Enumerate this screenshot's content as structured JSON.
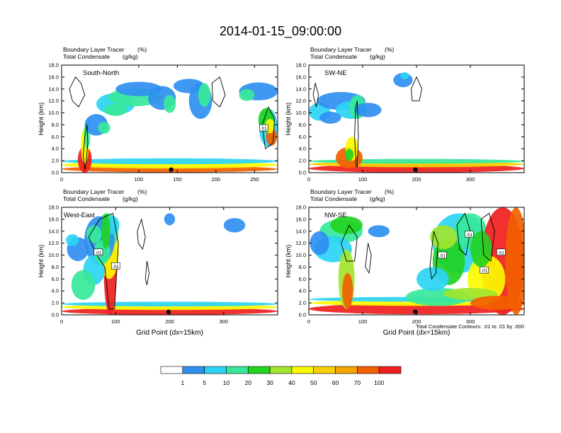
{
  "title": "2014-01-15_09:00:00",
  "colors": {
    "scale": [
      "#ffffff",
      "#2f8ff0",
      "#2bd4f4",
      "#37e89a",
      "#22d322",
      "#a2e52f",
      "#fbfb00",
      "#f9d000",
      "#f6a400",
      "#f25f00",
      "#f01e1e"
    ],
    "contour": "#000000",
    "axis": "#000000"
  },
  "chart_data": [
    {
      "type": "heatmap",
      "label": "South-North",
      "subtitle_left": "Boundary Layer Tracer",
      "subtitle_left_units": "(%)",
      "subtitle_left2": "Total Condensate",
      "subtitle_left2_units": "(g/kg)",
      "ylabel": "Height (km)",
      "xlabel": "",
      "xlim": [
        0,
        280
      ],
      "ylim": [
        0,
        18
      ],
      "xticks": [
        0,
        100,
        150,
        200,
        250
      ],
      "xtick_labels": [
        "0",
        "100",
        "150",
        "200",
        "250"
      ],
      "yticks": [
        0,
        2,
        4,
        6,
        8,
        10,
        12,
        14,
        16,
        18
      ],
      "ytick_labels": [
        "0.0",
        "2.0",
        "4.0",
        "6.0",
        "8.0",
        "10.0",
        "12.0",
        "14.0",
        "16.0",
        "18.0"
      ],
      "marker_x": 142,
      "contour_labels": [
        {
          "x": 262,
          "y": 7.5,
          "text": ".01"
        }
      ]
    },
    {
      "type": "heatmap",
      "label": "SW-NE",
      "subtitle_left": "Boundary Layer Tracer",
      "subtitle_left_units": "(%)",
      "subtitle_left2": "Total Condensate",
      "subtitle_left2_units": "(g/kg)",
      "ylabel": "Height (km)",
      "xlabel": "",
      "xlim": [
        0,
        400
      ],
      "ylim": [
        0,
        18
      ],
      "xticks": [
        0,
        100,
        200,
        300
      ],
      "xtick_labels": [
        "0",
        "100",
        "200",
        "300"
      ],
      "yticks": [
        0,
        2,
        4,
        6,
        8,
        10,
        12,
        14,
        16,
        18
      ],
      "ytick_labels": [
        "0.0",
        "2.0",
        "4.0",
        "6.0",
        "8.0",
        "10.0",
        "12.0",
        "14.0",
        "16.0",
        "18.0"
      ],
      "marker_x": 198,
      "contour_labels": []
    },
    {
      "type": "heatmap",
      "label": "West-East",
      "subtitle_left": "Boundary Layer Tracer",
      "subtitle_left_units": "(%)",
      "subtitle_left2": "Total Condensate",
      "subtitle_left2_units": "(g/kg)",
      "ylabel": "Height (km)",
      "xlabel": "Grid Point (dx=15km)",
      "xlim": [
        0,
        400
      ],
      "ylim": [
        0,
        18
      ],
      "xticks": [
        0,
        100,
        200,
        300
      ],
      "xtick_labels": [
        "0",
        "100",
        "200",
        "300"
      ],
      "yticks": [
        0,
        2,
        4,
        6,
        8,
        10,
        12,
        14,
        16,
        18
      ],
      "ytick_labels": [
        "0.0",
        "2.0",
        "4.0",
        "6.0",
        "8.0",
        "10.0",
        "12.0",
        "14.0",
        "16.0",
        "18.0"
      ],
      "marker_x": 198,
      "contour_labels": [
        {
          "x": 68,
          "y": 10.5,
          "text": ".01"
        },
        {
          "x": 100,
          "y": 8.2,
          "text": ".01"
        }
      ]
    },
    {
      "type": "heatmap",
      "label": "NW-SE",
      "subtitle_left": "Boundary Layer Tracer",
      "subtitle_left_units": "(%)",
      "subtitle_left2": "Total Condensate",
      "subtitle_left2_units": "(g/kg)",
      "ylabel": "Height (km)",
      "xlabel": "Grid Point (dx=15km)",
      "xlim": [
        0,
        400
      ],
      "ylim": [
        0,
        18
      ],
      "xticks": [
        0,
        100,
        200,
        300
      ],
      "xtick_labels": [
        "0",
        "100",
        "200",
        "300"
      ],
      "yticks": [
        0,
        2,
        4,
        6,
        8,
        10,
        12,
        14,
        16,
        18
      ],
      "ytick_labels": [
        "0.0",
        "2.0",
        "4.0",
        "6.0",
        "8.0",
        "10.0",
        "12.0",
        "14.0",
        "16.0",
        "18.0"
      ],
      "marker_x": 198,
      "contour_labels": [
        {
          "x": 248,
          "y": 10.0,
          "text": ".01"
        },
        {
          "x": 298,
          "y": 13.5,
          "text": ".01"
        },
        {
          "x": 326,
          "y": 7.5,
          "text": ".01"
        },
        {
          "x": 357,
          "y": 10.5,
          "text": ".01"
        }
      ],
      "footnote": "Total Condensate Contours: .01 to .01 by .000"
    }
  ],
  "colorbar": {
    "boundaries": [
      "1",
      "5",
      "10",
      "20",
      "30",
      "40",
      "50",
      "60",
      "70",
      "100"
    ]
  }
}
